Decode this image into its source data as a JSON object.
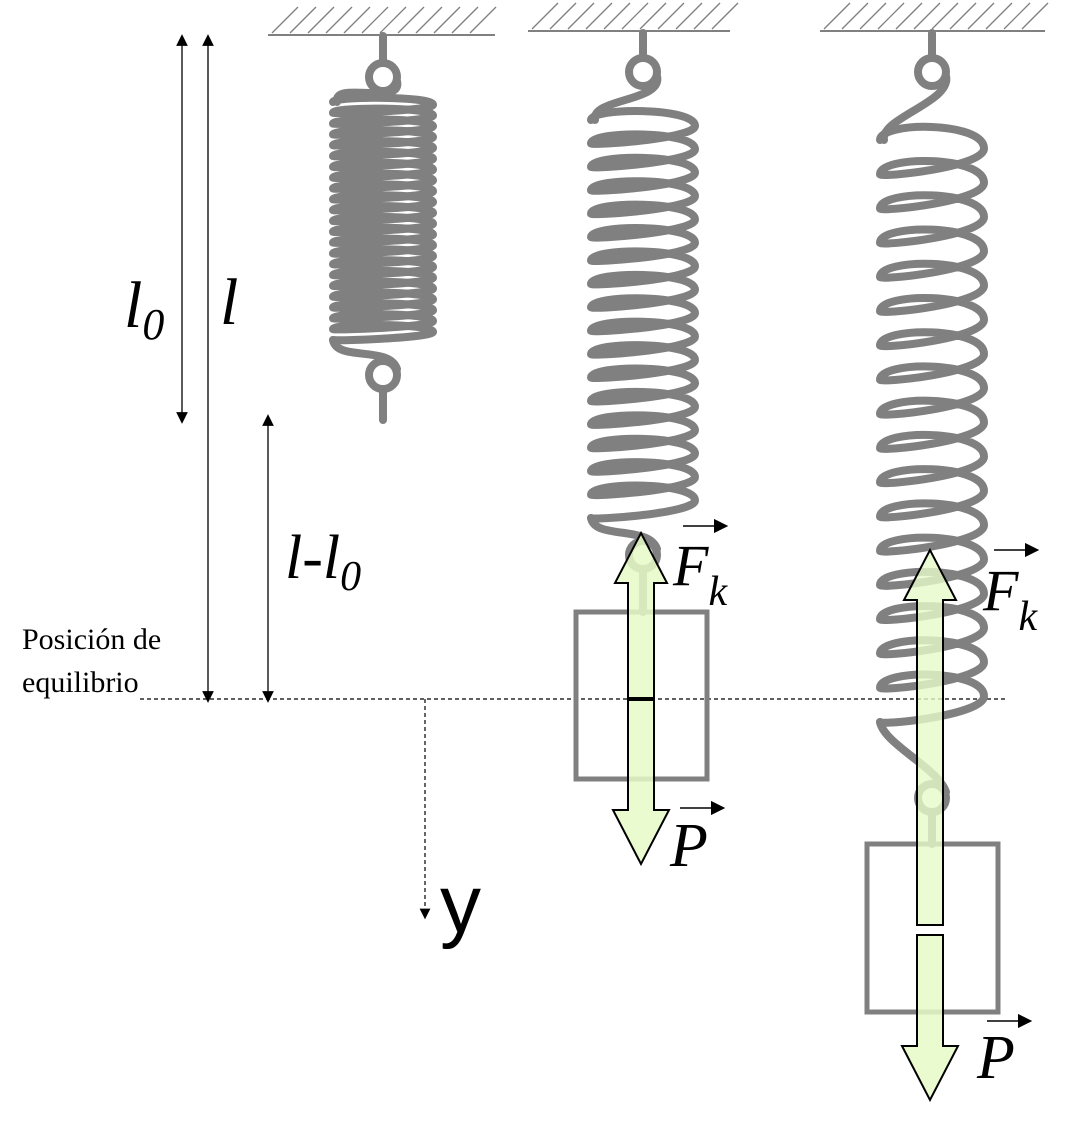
{
  "labels": {
    "l0_main": "l",
    "l0_sub": "0",
    "l": "l",
    "diff_main": "l-l",
    "diff_sub": "0",
    "equilibrium_line1": "Posición de",
    "equilibrium_line2": "equilibrio",
    "y_axis": "y",
    "fk_main": "F",
    "fk_sub": "k",
    "p_label": "P"
  },
  "colors": {
    "spring": "#808080",
    "force_arrow_fill": "#e6fac8",
    "force_arrow_stroke": "#000000",
    "mass_stroke": "#808080",
    "ceiling_hatch": "#808080",
    "lines": "#000000"
  },
  "springs": [
    {
      "name": "spring-unloaded",
      "coils": 22,
      "state": "natural length"
    },
    {
      "name": "spring-equilibrium",
      "coils": 17,
      "state": "equilibrium"
    },
    {
      "name": "spring-stretched",
      "coils": 17,
      "state": "stretched beyond equilibrium"
    }
  ]
}
